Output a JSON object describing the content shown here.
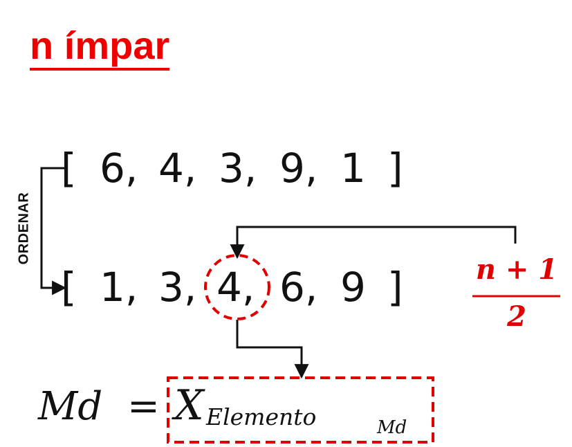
{
  "title": "n ímpar",
  "side_label": "ORDENAR",
  "unsorted": {
    "open": "[",
    "items": [
      "6,",
      "4,",
      "3,",
      "9,",
      "1"
    ],
    "close": "]"
  },
  "sorted": {
    "open": "[",
    "items": [
      "1,",
      "3,",
      "4,",
      "6,",
      "9"
    ],
    "close": "]"
  },
  "fraction": {
    "numerator": "n + 1",
    "denominator": "2"
  },
  "formula": {
    "lhs": "Md",
    "equals": "=",
    "symbol": "X",
    "subscript": "Elemento",
    "subsubscript": "Md"
  },
  "colors": {
    "accent": "#ee0000",
    "text": "#111111"
  }
}
